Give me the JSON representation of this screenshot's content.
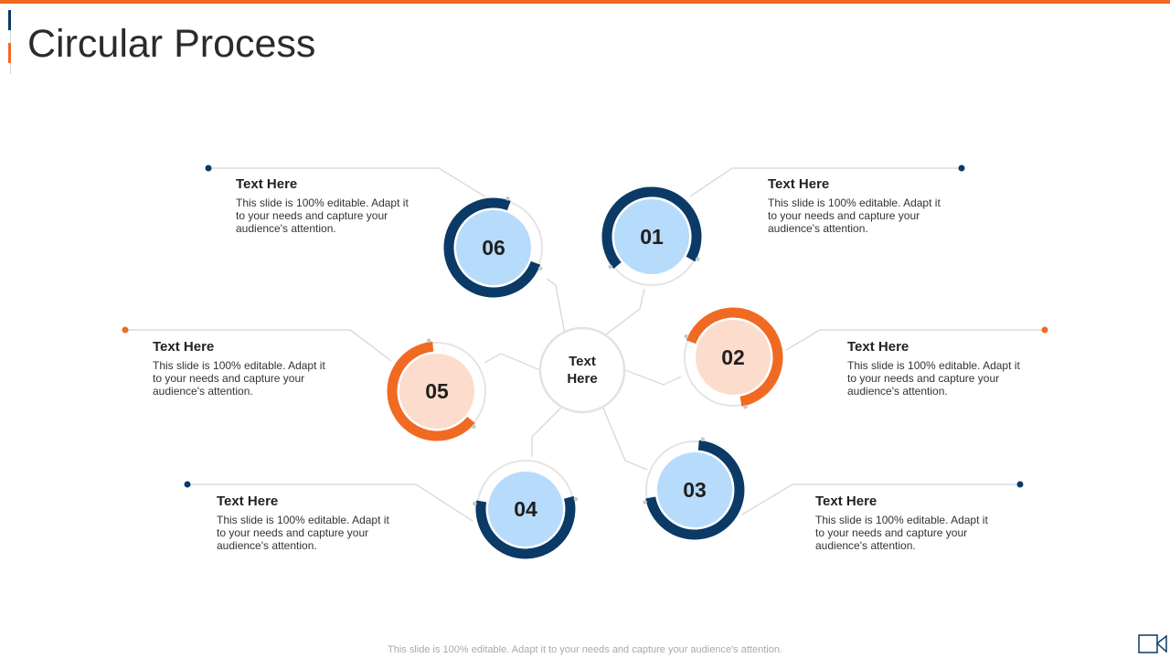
{
  "title": "Circular Process",
  "center": {
    "line1": "Text",
    "line2": "Here"
  },
  "colors": {
    "navy": "#0b3a67",
    "orange": "#f06a22",
    "light_blue": "#b7dbfb",
    "light_peach": "#fcdccc",
    "connector": "#d4d4d4"
  },
  "steps": [
    {
      "number": "01",
      "heading": "Text Here",
      "body": "This slide is 100% editable. Adapt it to your needs and capture your audience's attention.",
      "ring": "navy"
    },
    {
      "number": "02",
      "heading": "Text Here",
      "body": "This slide is 100% editable. Adapt it to your needs and capture your audience's attention.",
      "ring": "orange"
    },
    {
      "number": "03",
      "heading": "Text Here",
      "body": "This slide is 100% editable. Adapt it to your needs and capture your audience's attention.",
      "ring": "navy"
    },
    {
      "number": "04",
      "heading": "Text Here",
      "body": "This slide is 100% editable. Adapt it to your needs and capture your audience's attention.",
      "ring": "navy"
    },
    {
      "number": "05",
      "heading": "Text Here",
      "body": "This slide is 100% editable. Adapt it to your needs and capture your audience's attention.",
      "ring": "orange"
    },
    {
      "number": "06",
      "heading": "Text Here",
      "body": "This slide is 100% editable. Adapt it to your needs and capture your audience's attention.",
      "ring": "navy"
    }
  ],
  "footer": "This slide is 100% editable.  Adapt it to your needs and capture your audience's attention.",
  "icons": {
    "corner": "video-camera-icon"
  }
}
